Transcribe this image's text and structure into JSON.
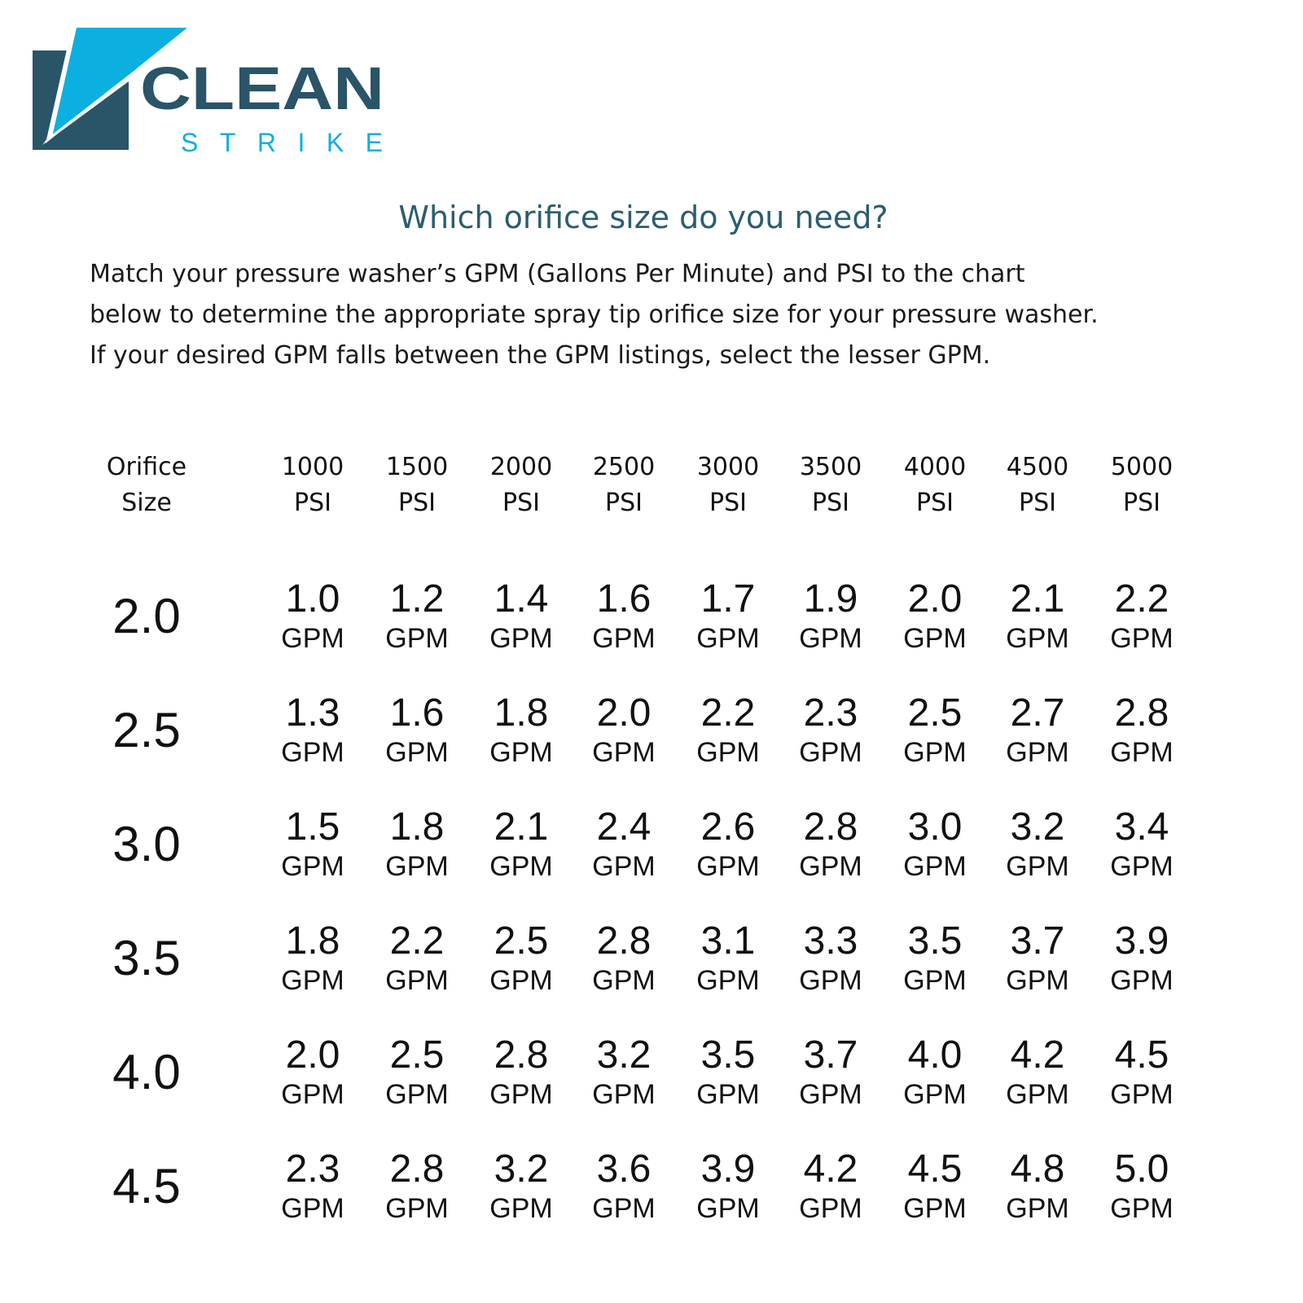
{
  "logo": {
    "word1": "CLEAN",
    "word2": "STRIKE",
    "colors": {
      "dark": "#2a5468",
      "accent": "#0bb0e0"
    }
  },
  "title": "Which orifice size do you need?",
  "intro": [
    "Match your pressure washer’s GPM (Gallons Per Minute) and PSI to the chart",
    "below to determine the appropriate spray tip orifice size for your pressure washer.",
    "If your desired GPM falls between the GPM listings, select the lesser GPM."
  ],
  "table": {
    "header_first": [
      "Orifice",
      "Size"
    ],
    "columns": [
      [
        "1000",
        "PSI"
      ],
      [
        "1500",
        "PSI"
      ],
      [
        "2000",
        "PSI"
      ],
      [
        "2500",
        "PSI"
      ],
      [
        "3000",
        "PSI"
      ],
      [
        "3500",
        "PSI"
      ],
      [
        "4000",
        "PSI"
      ],
      [
        "4500",
        "PSI"
      ],
      [
        "5000",
        "PSI"
      ]
    ],
    "unit": "GPM",
    "rows": [
      {
        "orifice": "2.0",
        "values": [
          "1.0",
          "1.2",
          "1.4",
          "1.6",
          "1.7",
          "1.9",
          "2.0",
          "2.1",
          "2.2"
        ]
      },
      {
        "orifice": "2.5",
        "values": [
          "1.3",
          "1.6",
          "1.8",
          "2.0",
          "2.2",
          "2.3",
          "2.5",
          "2.7",
          "2.8"
        ]
      },
      {
        "orifice": "3.0",
        "values": [
          "1.5",
          "1.8",
          "2.1",
          "2.4",
          "2.6",
          "2.8",
          "3.0",
          "3.2",
          "3.4"
        ]
      },
      {
        "orifice": "3.5",
        "values": [
          "1.8",
          "2.2",
          "2.5",
          "2.8",
          "3.1",
          "3.3",
          "3.5",
          "3.7",
          "3.9"
        ]
      },
      {
        "orifice": "4.0",
        "values": [
          "2.0",
          "2.5",
          "2.8",
          "3.2",
          "3.5",
          "3.7",
          "4.0",
          "4.2",
          "4.5"
        ]
      },
      {
        "orifice": "4.5",
        "values": [
          "2.3",
          "2.8",
          "3.2",
          "3.6",
          "3.9",
          "4.2",
          "4.5",
          "4.8",
          "5.0"
        ]
      }
    ]
  }
}
